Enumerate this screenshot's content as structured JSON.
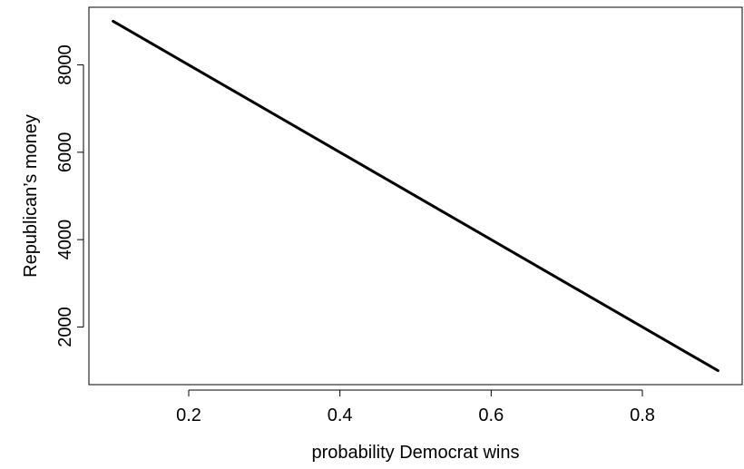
{
  "chart_data": {
    "type": "line",
    "title": "",
    "xlabel": "probability Democrat wins",
    "ylabel": "Republican’s money",
    "xlim": [
      0.068,
      0.932
    ],
    "ylim": [
      680,
      9320
    ],
    "xticks": [
      0.2,
      0.4,
      0.6,
      0.8
    ],
    "xtick_labels": [
      "0.2",
      "0.4",
      "0.6",
      "0.8"
    ],
    "yticks": [
      2000,
      4000,
      6000,
      8000
    ],
    "ytick_labels": [
      "2000",
      "4000",
      "6000",
      "8000"
    ],
    "grid": false,
    "series": [
      {
        "x": [
          0.1,
          0.9
        ],
        "y": [
          9000,
          1000
        ],
        "color": "#000000"
      }
    ]
  }
}
